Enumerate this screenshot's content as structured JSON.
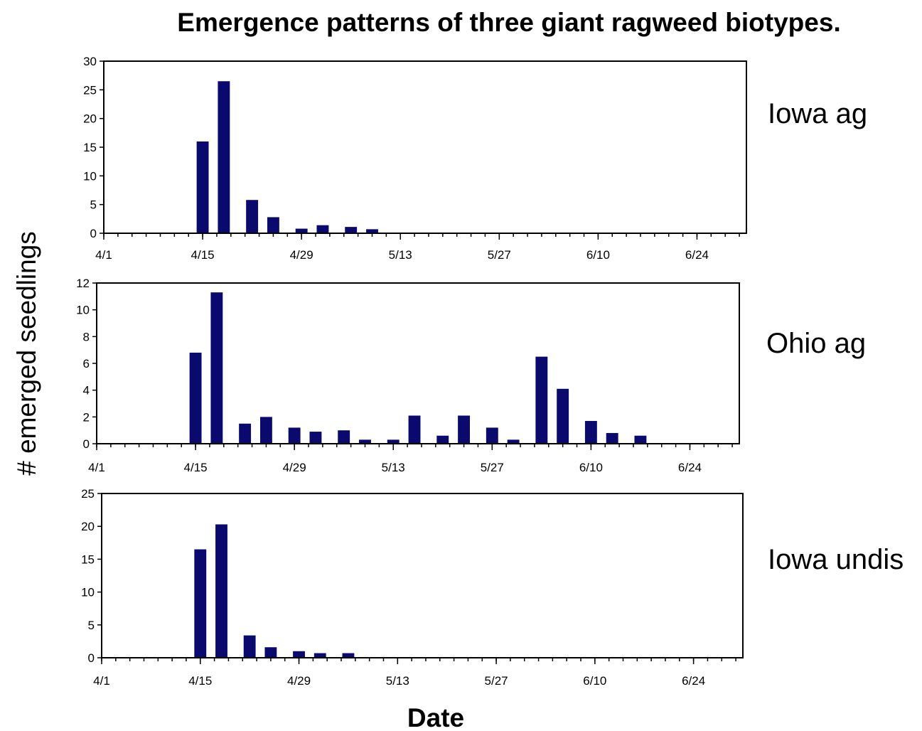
{
  "title": "Emergence patterns of three giant ragweed biotypes.",
  "xlabel": "Date",
  "ylabel": "# emerged seedlings",
  "colors": {
    "bar": "#0a0a6e",
    "background": "#ffffff",
    "axis": "#000000"
  },
  "chart_data": [
    {
      "type": "bar",
      "label": "Iowa ag",
      "x_tick_labels": [
        "4/1",
        "4/15",
        "4/29",
        "5/13",
        "5/27",
        "6/10",
        "6/24"
      ],
      "x_range_days": [
        0,
        91
      ],
      "ylim": [
        0,
        30
      ],
      "yticks": [
        0,
        5,
        10,
        15,
        20,
        25,
        30
      ],
      "bars": [
        {
          "x": 14,
          "y": 16
        },
        {
          "x": 17,
          "y": 26.5
        },
        {
          "x": 21,
          "y": 5.8
        },
        {
          "x": 24,
          "y": 2.8
        },
        {
          "x": 28,
          "y": 0.8
        },
        {
          "x": 31,
          "y": 1.4
        },
        {
          "x": 35,
          "y": 1.1
        },
        {
          "x": 38,
          "y": 0.7
        }
      ]
    },
    {
      "type": "bar",
      "label": "Ohio ag",
      "x_tick_labels": [
        "4/1",
        "4/15",
        "4/29",
        "5/13",
        "5/27",
        "6/10",
        "6/24"
      ],
      "x_range_days": [
        0,
        91
      ],
      "ylim": [
        0,
        12
      ],
      "yticks": [
        0,
        2,
        4,
        6,
        8,
        10,
        12
      ],
      "bars": [
        {
          "x": 14,
          "y": 6.8
        },
        {
          "x": 17,
          "y": 11.3
        },
        {
          "x": 21,
          "y": 1.5
        },
        {
          "x": 24,
          "y": 2.0
        },
        {
          "x": 28,
          "y": 1.2
        },
        {
          "x": 31,
          "y": 0.9
        },
        {
          "x": 35,
          "y": 1.0
        },
        {
          "x": 38,
          "y": 0.3
        },
        {
          "x": 42,
          "y": 0.3
        },
        {
          "x": 45,
          "y": 2.1
        },
        {
          "x": 49,
          "y": 0.6
        },
        {
          "x": 52,
          "y": 2.1
        },
        {
          "x": 56,
          "y": 1.2
        },
        {
          "x": 59,
          "y": 0.3
        },
        {
          "x": 63,
          "y": 6.5
        },
        {
          "x": 66,
          "y": 4.1
        },
        {
          "x": 70,
          "y": 1.7
        },
        {
          "x": 73,
          "y": 0.8
        },
        {
          "x": 77,
          "y": 0.6
        }
      ]
    },
    {
      "type": "bar",
      "label": "Iowa undis",
      "x_tick_labels": [
        "4/1",
        "4/15",
        "4/29",
        "5/13",
        "5/27",
        "6/10",
        "6/24"
      ],
      "x_range_days": [
        0,
        91
      ],
      "ylim": [
        0,
        25
      ],
      "yticks": [
        0,
        5,
        10,
        15,
        20,
        25
      ],
      "bars": [
        {
          "x": 14,
          "y": 16.5
        },
        {
          "x": 17,
          "y": 20.3
        },
        {
          "x": 21,
          "y": 3.4
        },
        {
          "x": 24,
          "y": 1.6
        },
        {
          "x": 28,
          "y": 1.0
        },
        {
          "x": 31,
          "y": 0.7
        },
        {
          "x": 35,
          "y": 0.7
        }
      ]
    }
  ]
}
